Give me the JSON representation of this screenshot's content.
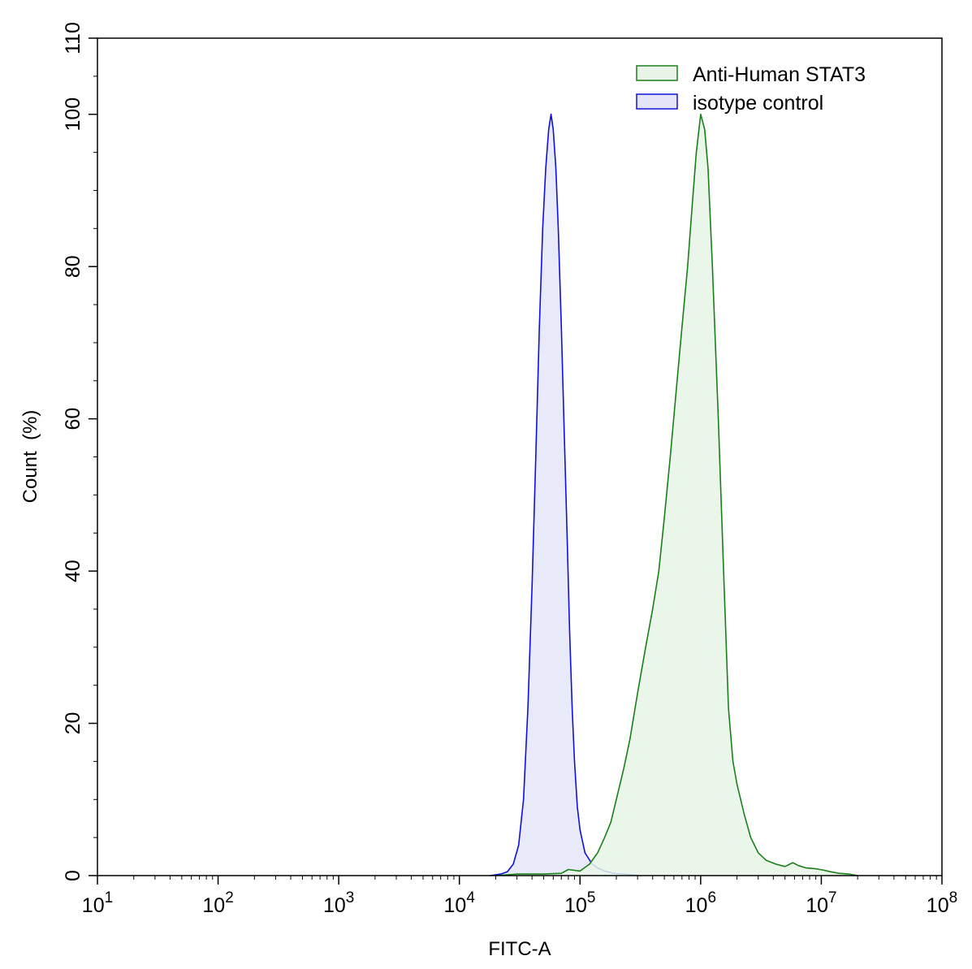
{
  "chart_data": {
    "type": "area",
    "title": "",
    "xlabel": "FITC-A",
    "ylabel": "Count  (%)",
    "x_scale": "log",
    "xlim": [
      10,
      100000000
    ],
    "ylim": [
      0,
      110
    ],
    "x_ticks": [
      {
        "value": 10,
        "base": "10",
        "exp": "1"
      },
      {
        "value": 100,
        "base": "10",
        "exp": "2"
      },
      {
        "value": 1000,
        "base": "10",
        "exp": "3"
      },
      {
        "value": 10000,
        "base": "10",
        "exp": "4"
      },
      {
        "value": 100000,
        "base": "10",
        "exp": "5"
      },
      {
        "value": 1000000,
        "base": "10",
        "exp": "6"
      },
      {
        "value": 10000000,
        "base": "10",
        "exp": "7"
      },
      {
        "value": 100000000,
        "base": "10",
        "exp": "8"
      }
    ],
    "y_ticks": [
      {
        "value": 0,
        "label": "0"
      },
      {
        "value": 20,
        "label": "20"
      },
      {
        "value": 40,
        "label": "40"
      },
      {
        "value": 60,
        "label": "60"
      },
      {
        "value": 80,
        "label": "80"
      },
      {
        "value": 100,
        "label": "100"
      },
      {
        "value": 110,
        "label": "110"
      }
    ],
    "grid": false,
    "legend_position": "top-right",
    "series": [
      {
        "name": "Anti-Human STAT3",
        "line_color": "#1a7f1a",
        "fill_color": "#e8f4e8",
        "points": [
          [
            20000,
            0
          ],
          [
            30000,
            0.2
          ],
          [
            50000,
            0.2
          ],
          [
            70000,
            0.3
          ],
          [
            80000,
            0.8
          ],
          [
            100000,
            0.6
          ],
          [
            120000,
            1.5
          ],
          [
            140000,
            3
          ],
          [
            160000,
            5
          ],
          [
            180000,
            7
          ],
          [
            200000,
            10
          ],
          [
            230000,
            14
          ],
          [
            260000,
            18
          ],
          [
            300000,
            24
          ],
          [
            350000,
            30
          ],
          [
            400000,
            35
          ],
          [
            450000,
            40
          ],
          [
            500000,
            47
          ],
          [
            560000,
            55
          ],
          [
            630000,
            64
          ],
          [
            700000,
            72
          ],
          [
            780000,
            80
          ],
          [
            850000,
            88
          ],
          [
            920000,
            95
          ],
          [
            1000000,
            100
          ],
          [
            1080000,
            98
          ],
          [
            1150000,
            93
          ],
          [
            1250000,
            80
          ],
          [
            1400000,
            60
          ],
          [
            1550000,
            40
          ],
          [
            1700000,
            22
          ],
          [
            1850000,
            15
          ],
          [
            2000000,
            12
          ],
          [
            2300000,
            8
          ],
          [
            2600000,
            5
          ],
          [
            3000000,
            3
          ],
          [
            3500000,
            2
          ],
          [
            4200000,
            1.5
          ],
          [
            5000000,
            1.2
          ],
          [
            5800000,
            1.7
          ],
          [
            6500000,
            1.3
          ],
          [
            7500000,
            1
          ],
          [
            9000000,
            0.9
          ],
          [
            10500000,
            0.7
          ],
          [
            12000000,
            0.5
          ],
          [
            14000000,
            0.3
          ],
          [
            17000000,
            0.2
          ],
          [
            20000000,
            0
          ]
        ]
      },
      {
        "name": "isotype control",
        "line_color": "#1010dd",
        "fill_color": "#e4e6f8",
        "points": [
          [
            18000,
            0
          ],
          [
            22000,
            0.2
          ],
          [
            25000,
            0.5
          ],
          [
            28000,
            1.5
          ],
          [
            31000,
            4
          ],
          [
            34000,
            10
          ],
          [
            37000,
            22
          ],
          [
            40000,
            38
          ],
          [
            43000,
            55
          ],
          [
            46000,
            72
          ],
          [
            49000,
            85
          ],
          [
            52000,
            93
          ],
          [
            55000,
            98
          ],
          [
            57500,
            100
          ],
          [
            60000,
            98
          ],
          [
            63000,
            93
          ],
          [
            66000,
            85
          ],
          [
            70000,
            72
          ],
          [
            74000,
            58
          ],
          [
            78000,
            45
          ],
          [
            82000,
            32
          ],
          [
            86000,
            22
          ],
          [
            90000,
            15
          ],
          [
            95000,
            9
          ],
          [
            100000,
            6
          ],
          [
            110000,
            3
          ],
          [
            125000,
            1.6
          ],
          [
            140000,
            1
          ],
          [
            160000,
            0.6
          ],
          [
            190000,
            0.3
          ],
          [
            230000,
            0.2
          ],
          [
            280000,
            0.1
          ],
          [
            310000,
            0
          ]
        ]
      }
    ]
  }
}
